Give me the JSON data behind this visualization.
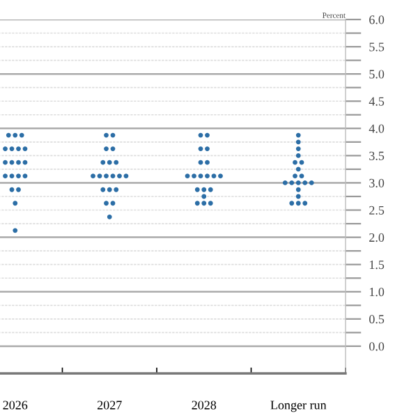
{
  "chart_data": {
    "type": "scatter",
    "ylabel": "Percent",
    "categories": [
      "2026",
      "2027",
      "2028",
      "Longer run"
    ],
    "series": [
      {
        "color": "#2c6ea6",
        "values": [
          3.875,
          3.875,
          3.875,
          3.875
        ]
      },
      {
        "color": "#2c6ea6",
        "values": [
          3.875,
          3.875,
          3.875,
          3.75
        ]
      },
      {
        "color": "#2c6ea6",
        "values": [
          3.875,
          3.625,
          3.625,
          3.625
        ]
      },
      {
        "color": "#2c6ea6",
        "values": [
          3.625,
          3.625,
          3.625,
          3.5
        ]
      },
      {
        "color": "#2c6ea6",
        "values": [
          3.625,
          3.375,
          3.375,
          3.375
        ]
      },
      {
        "color": "#2c6ea6",
        "values": [
          3.625,
          3.375,
          3.375,
          3.375
        ]
      },
      {
        "color": "#2c6ea6",
        "values": [
          3.625,
          3.375,
          3.125,
          3.25
        ]
      },
      {
        "color": "#2c6ea6",
        "values": [
          3.375,
          3.125,
          3.125,
          3.125
        ]
      },
      {
        "color": "#2c6ea6",
        "values": [
          3.375,
          3.125,
          3.125,
          3.125
        ]
      },
      {
        "color": "#2c6ea6",
        "values": [
          3.375,
          3.125,
          3.125,
          3.0
        ]
      },
      {
        "color": "#2c6ea6",
        "values": [
          3.375,
          3.125,
          3.125,
          3.0
        ]
      },
      {
        "color": "#2c6ea6",
        "values": [
          3.125,
          3.125,
          3.125,
          3.0
        ]
      },
      {
        "color": "#2c6ea6",
        "values": [
          3.125,
          3.125,
          2.875,
          3.0
        ]
      },
      {
        "color": "#2c6ea6",
        "values": [
          3.125,
          2.875,
          2.875,
          3.0
        ]
      },
      {
        "color": "#2c6ea6",
        "values": [
          3.125,
          2.875,
          2.875,
          2.875
        ]
      },
      {
        "color": "#2c6ea6",
        "values": [
          2.875,
          2.875,
          2.75,
          2.75
        ]
      },
      {
        "color": "#2c6ea6",
        "values": [
          2.875,
          2.625,
          2.625,
          2.625
        ]
      },
      {
        "color": "#2c6ea6",
        "values": [
          2.625,
          2.625,
          2.625,
          2.625
        ]
      },
      {
        "color": "#2c6ea6",
        "values": [
          2.125,
          2.375,
          2.625,
          2.625
        ]
      }
    ],
    "marker": "circle",
    "grid": "y",
    "ylim": [
      -0.5,
      6.0
    ],
    "yticks": [
      {
        "value": 0,
        "label": "0.0"
      },
      {
        "value": 0.25,
        "label": null
      },
      {
        "value": 0.5,
        "label": "0.5"
      },
      {
        "value": 0.75,
        "label": null
      },
      {
        "value": 1,
        "label": "1.0"
      },
      {
        "value": 1.25,
        "label": null
      },
      {
        "value": 1.5,
        "label": "1.5"
      },
      {
        "value": 1.75,
        "label": null
      },
      {
        "value": 2,
        "label": "2.0"
      },
      {
        "value": 2.25,
        "label": null
      },
      {
        "value": 2.5,
        "label": "2.5"
      },
      {
        "value": 2.75,
        "label": null
      },
      {
        "value": 3,
        "label": "3.0"
      },
      {
        "value": 3.25,
        "label": null
      },
      {
        "value": 3.5,
        "label": "3.5"
      },
      {
        "value": 3.75,
        "label": null
      },
      {
        "value": 4,
        "label": "4.0"
      },
      {
        "value": 4.25,
        "label": null
      },
      {
        "value": 4.5,
        "label": "4.5"
      },
      {
        "value": 4.75,
        "label": null
      },
      {
        "value": 5,
        "label": "5.0"
      },
      {
        "value": 5.25,
        "label": null
      },
      {
        "value": 5.5,
        "label": "5.5"
      },
      {
        "value": 5.75,
        "label": null
      },
      {
        "value": 6,
        "label": "6.0"
      }
    ]
  }
}
